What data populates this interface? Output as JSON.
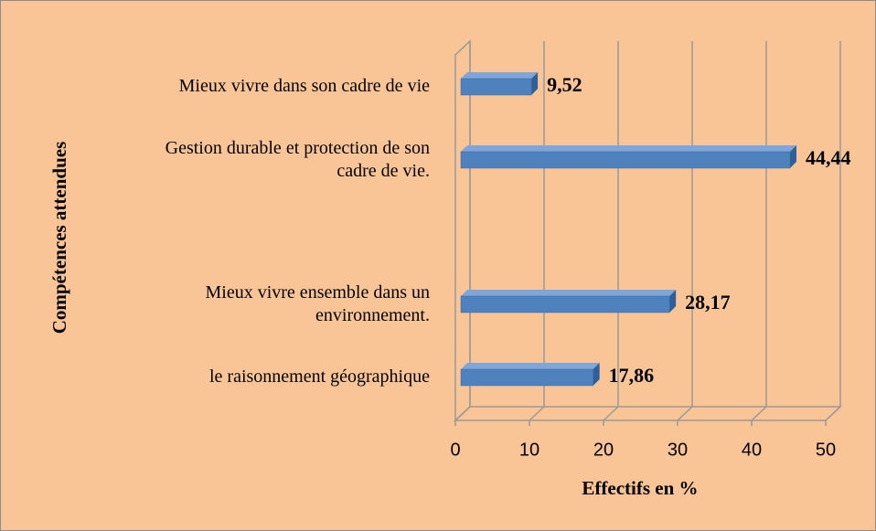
{
  "chart_data": {
    "type": "bar3d_horizontal",
    "categories": [
      "Mieux vivre dans son cadre de vie",
      "Gestion durable et protection de son\ncadre de vie.",
      null,
      "Mieux vivre ensemble dans un\nenvironnement.",
      "le raisonnement géographique"
    ],
    "values": [
      9.52,
      44.44,
      null,
      28.17,
      17.86
    ],
    "value_labels": [
      "9,52",
      "44,44",
      null,
      "28,17",
      "17,86"
    ],
    "color": "#4f81bd",
    "xlabel": "Effectifs en %",
    "ylabel": "Compétences attendues",
    "xlim": [
      0,
      50
    ],
    "xticks": [
      0,
      10,
      20,
      30,
      40,
      50
    ],
    "grid": true
  }
}
